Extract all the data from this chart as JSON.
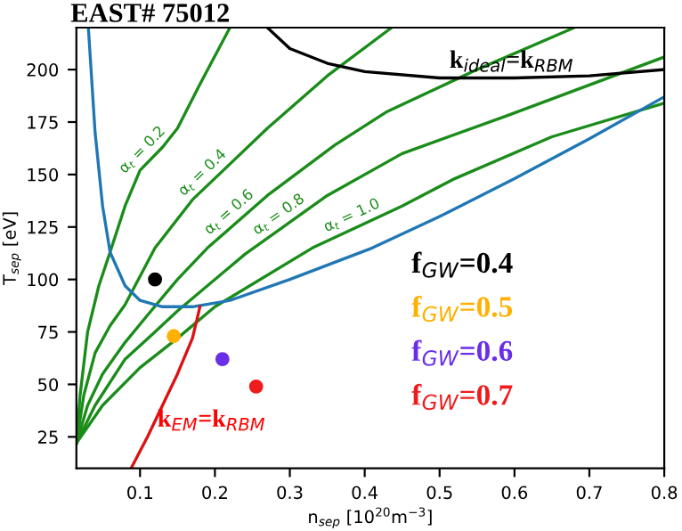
{
  "chart_data": {
    "type": "line",
    "title": "EAST# 75012",
    "xlabel": "n$_{sep}$ [10$^{20}$m$^{−3}$]",
    "ylabel": "T$_{sep}$ [eV]",
    "xlim": [
      0.015,
      0.8
    ],
    "ylim": [
      10,
      220
    ],
    "xticks": [
      0.1,
      0.2,
      0.3,
      0.4,
      0.5,
      0.6,
      0.7,
      0.8
    ],
    "yticks": [
      25,
      50,
      75,
      100,
      125,
      150,
      175,
      200
    ],
    "grid": false,
    "legend": false,
    "series": [
      {
        "name": "α$_{t}$ = 0.2",
        "color": "#1a8c1a",
        "x": [
          0.015,
          0.02,
          0.03,
          0.045,
          0.06,
          0.08,
          0.1,
          0.13,
          0.15,
          0.18,
          0.22
        ],
        "values": [
          22,
          45,
          75,
          97,
          113,
          135,
          152,
          163,
          172,
          193,
          220
        ]
      },
      {
        "name": "α$_{t}$ = 0.4",
        "color": "#1a8c1a",
        "x": [
          0.015,
          0.025,
          0.04,
          0.06,
          0.08,
          0.12,
          0.17,
          0.22,
          0.27,
          0.35,
          0.436
        ],
        "values": [
          22,
          45,
          65,
          78,
          88,
          115,
          138,
          155,
          172,
          197,
          220
        ]
      },
      {
        "name": "α$_{t}$ = 0.6",
        "color": "#1a8c1a",
        "x": [
          0.015,
          0.03,
          0.05,
          0.08,
          0.11,
          0.15,
          0.19,
          0.27,
          0.36,
          0.43,
          0.55,
          0.68
        ],
        "values": [
          22,
          40,
          55,
          70,
          83,
          100,
          115,
          140,
          164,
          180,
          200,
          220
        ]
      },
      {
        "name": "α$_{t}$ = 0.8",
        "color": "#1a8c1a",
        "x": [
          0.015,
          0.04,
          0.08,
          0.12,
          0.15,
          0.24,
          0.35,
          0.45,
          0.59,
          0.8
        ],
        "values": [
          22,
          40,
          62,
          75,
          85,
          112,
          140,
          160,
          178,
          206
        ]
      },
      {
        "name": "α$_{t}$ = 1.0",
        "color": "#1a8c1a",
        "x": [
          0.015,
          0.05,
          0.1,
          0.15,
          0.2,
          0.33,
          0.45,
          0.52,
          0.65,
          0.8
        ],
        "values": [
          22,
          40,
          58,
          72,
          87,
          115,
          135,
          148,
          168,
          184
        ]
      },
      {
        "color": "#1f77b4",
        "x": [
          0.031,
          0.04,
          0.05,
          0.06,
          0.08,
          0.1,
          0.13,
          0.17,
          0.22,
          0.3,
          0.41,
          0.5,
          0.6,
          0.7,
          0.8
        ],
        "values": [
          220,
          170,
          135,
          113,
          97,
          90,
          87,
          87,
          90,
          100,
          115,
          130,
          148,
          167,
          187
        ]
      },
      {
        "color": "#000000",
        "x": [
          0.27,
          0.3,
          0.35,
          0.4,
          0.5,
          0.6,
          0.7,
          0.8
        ],
        "values": [
          220,
          210,
          203,
          199,
          196,
          196,
          197,
          200
        ]
      },
      {
        "color": "#dd1111",
        "x": [
          0.088,
          0.11,
          0.13,
          0.15,
          0.17,
          0.18
        ],
        "values": [
          10,
          25,
          40,
          55,
          72,
          87
        ]
      },
      {
        "type": "scatter",
        "name": "f$_{GW}$=0.4",
        "color": "#000000",
        "x": [
          0.12
        ],
        "values": [
          100
        ]
      },
      {
        "type": "scatter",
        "name": "f$_{GW}$=0.5",
        "color": "#ffb000",
        "x": [
          0.145
        ],
        "values": [
          73
        ]
      },
      {
        "type": "scatter",
        "name": "f$_{GW}$=0.6",
        "color": "#6a2ee8",
        "x": [
          0.21
        ],
        "values": [
          62
        ]
      },
      {
        "type": "scatter",
        "name": "f$_{GW}$=0.7",
        "color": "#ee1c1c",
        "x": [
          0.255
        ],
        "values": [
          49
        ]
      }
    ],
    "annotations": [
      {
        "text": "k$_{ideal}$=k$_{RBM}$",
        "x": 0.5,
        "y": 196
      },
      {
        "text": "k$_{EM}$=k$_{RBM}$",
        "x": 0.11,
        "y": 25
      }
    ]
  }
}
